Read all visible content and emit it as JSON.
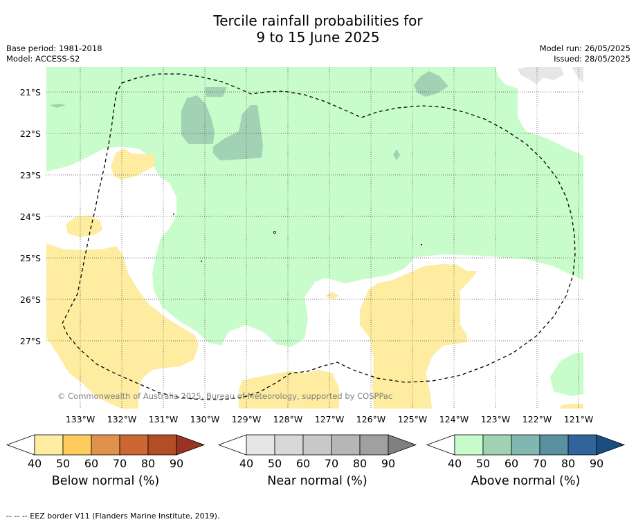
{
  "header": {
    "title_line1": "Tercile rainfall probabilities for",
    "title_line2": "9 to 15 June 2025",
    "base_period": "Base period: 1981-2018",
    "model": "Model: ACCESS-S2",
    "model_run": "Model run: 26/05/2025",
    "issued": "Issued: 28/05/2025"
  },
  "map": {
    "lat_labels": [
      "21°S",
      "22°S",
      "23°S",
      "24°S",
      "25°S",
      "26°S",
      "27°S"
    ],
    "lon_labels": [
      "133°W",
      "132°W",
      "131°W",
      "130°W",
      "129°W",
      "128°W",
      "127°W",
      "126°W",
      "125°W",
      "124°W",
      "123°W",
      "122°W",
      "121°W"
    ],
    "copyright": "© Commonwealth of Australia 2025, Bureau of Meteorology, supported by COSPPac",
    "colors": {
      "above_40": "#c8fcca",
      "above_50": "#a0d2b3",
      "below_40": "#feeca0",
      "near_40": "#e6e6e6"
    }
  },
  "colorbars": [
    {
      "label": "Below normal (%)",
      "ticks": [
        "40",
        "50",
        "60",
        "70",
        "80",
        "90"
      ],
      "colors": [
        "#feeca0",
        "#fecc5c",
        "#e0924a",
        "#cc6633",
        "#b34d26",
        "#993322"
      ]
    },
    {
      "label": "Near normal (%)",
      "ticks": [
        "40",
        "50",
        "60",
        "70",
        "80",
        "90"
      ],
      "colors": [
        "#e6e6e6",
        "#d8d8d8",
        "#c8c8c8",
        "#b6b6b6",
        "#a0a0a0",
        "#808080"
      ]
    },
    {
      "label": "Above normal (%)",
      "ticks": [
        "40",
        "50",
        "60",
        "70",
        "80",
        "90"
      ],
      "colors": [
        "#c8fcca",
        "#a0d2b3",
        "#80b7b0",
        "#5a90a0",
        "#30649a",
        "#1a4d80"
      ]
    }
  ],
  "footer": {
    "legend_text": "--  --  -- EEZ border V11 (Flanders Marine Institute, 2019)."
  }
}
